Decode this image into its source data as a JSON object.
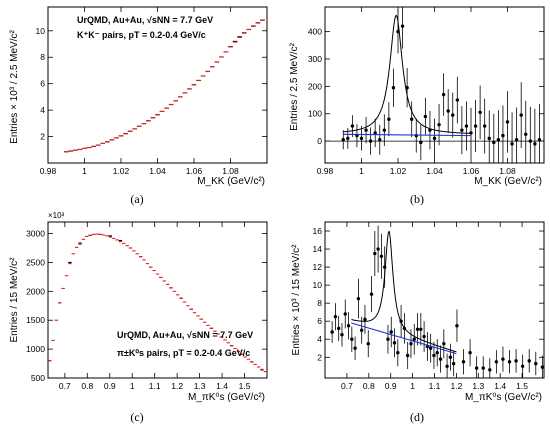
{
  "chart_data": [
    {
      "id": "a",
      "type": "histogram",
      "caption": "(a)",
      "xlabel": "M_KK (GeV/c²)",
      "ylabel": "Entries × 10³ / 2.5 MeV/c²",
      "xlim": [
        0.98,
        1.1
      ],
      "ylim": [
        0,
        11.8
      ],
      "xticks": [
        0.98,
        1.0,
        1.02,
        1.04,
        1.06,
        1.08
      ],
      "yticks": [
        2,
        4,
        6,
        8,
        10
      ],
      "annotations": [
        "UrQMD, Au+Au, √sNN = 7.7 GeV",
        "K⁺K⁻ pairs, pT = 0.2-0.4 GeV/c"
      ],
      "series": [
        {
          "style": "black-steps",
          "x": [
            0.99,
            0.9925,
            0.995,
            0.9975,
            1.0,
            1.0025,
            1.005,
            1.0075,
            1.01,
            1.0125,
            1.015,
            1.0175,
            1.02,
            1.0225,
            1.025,
            1.0275,
            1.03,
            1.0325,
            1.035,
            1.0375,
            1.04,
            1.0425,
            1.045,
            1.0475,
            1.05,
            1.0525,
            1.055,
            1.0575,
            1.06,
            1.0625,
            1.065,
            1.0675,
            1.07,
            1.0725,
            1.075,
            1.0775,
            1.08,
            1.0825,
            1.085,
            1.0875,
            1.09,
            1.0925,
            1.095,
            1.0975
          ],
          "y": [
            0.85,
            0.9,
            0.97,
            1.02,
            1.1,
            1.17,
            1.25,
            1.35,
            1.48,
            1.6,
            1.75,
            1.9,
            2.05,
            2.22,
            2.4,
            2.58,
            2.78,
            2.98,
            3.2,
            3.42,
            3.65,
            3.9,
            4.15,
            4.42,
            4.7,
            5.0,
            5.3,
            5.6,
            5.92,
            6.24,
            6.58,
            6.92,
            7.28,
            7.64,
            8.02,
            8.4,
            8.8,
            9.2,
            9.55,
            9.85,
            10.1,
            10.35,
            10.6,
            10.8
          ]
        },
        {
          "style": "red-steps",
          "x": [
            0.99,
            0.9925,
            0.995,
            0.9975,
            1.0,
            1.0025,
            1.005,
            1.0075,
            1.01,
            1.0125,
            1.015,
            1.0175,
            1.02,
            1.0225,
            1.025,
            1.0275,
            1.03,
            1.0325,
            1.035,
            1.0375,
            1.04,
            1.0425,
            1.045,
            1.0475,
            1.05,
            1.0525,
            1.055,
            1.0575,
            1.06,
            1.0625,
            1.065,
            1.0675,
            1.07,
            1.0725,
            1.075,
            1.0775,
            1.08,
            1.0825,
            1.085,
            1.0875,
            1.09,
            1.0925,
            1.095,
            1.0975
          ],
          "y": [
            0.85,
            0.92,
            0.98,
            1.03,
            1.1,
            1.17,
            1.26,
            1.36,
            1.48,
            1.62,
            1.76,
            1.9,
            2.06,
            2.22,
            2.4,
            2.58,
            2.78,
            2.98,
            3.2,
            3.43,
            3.66,
            3.9,
            4.16,
            4.43,
            4.7,
            5.0,
            5.3,
            5.61,
            5.92,
            6.25,
            6.58,
            6.93,
            7.28,
            7.65,
            8.02,
            8.4,
            8.78,
            9.15,
            9.5,
            9.82,
            10.1,
            10.38,
            10.62,
            10.82
          ]
        }
      ]
    },
    {
      "id": "b",
      "type": "scatter",
      "caption": "(b)",
      "xlabel": "M_KK (GeV/c²)",
      "ylabel": "Entries / 2.5 MeV/c²",
      "xlim": [
        0.98,
        1.1
      ],
      "ylim": [
        -80,
        490
      ],
      "xticks": [
        0.98,
        1.0,
        1.02,
        1.04,
        1.06,
        1.08
      ],
      "yticks": [
        0,
        100,
        200,
        300,
        400
      ],
      "series": [
        {
          "style": "points-with-errors",
          "x": [
            0.99,
            0.9925,
            0.995,
            0.9975,
            1.0,
            1.0025,
            1.005,
            1.0075,
            1.01,
            1.0125,
            1.015,
            1.0175,
            1.02,
            1.0225,
            1.025,
            1.0275,
            1.03,
            1.0325,
            1.035,
            1.0375,
            1.04,
            1.0425,
            1.045,
            1.0475,
            1.05,
            1.0525,
            1.055,
            1.0575,
            1.06,
            1.0625,
            1.065,
            1.0675,
            1.07,
            1.0725,
            1.075,
            1.0775,
            1.08,
            1.0825,
            1.085,
            1.0875,
            1.09,
            1.0925,
            1.095,
            1.0975
          ],
          "y": [
            5,
            10,
            55,
            20,
            10,
            40,
            0,
            30,
            5,
            40,
            80,
            195,
            400,
            420,
            195,
            80,
            20,
            -5,
            90,
            40,
            10,
            60,
            170,
            110,
            95,
            150,
            40,
            55,
            30,
            55,
            105,
            55,
            10,
            -5,
            5,
            20,
            70,
            -10,
            5,
            95,
            25,
            0,
            -10,
            5
          ],
          "err": [
            35,
            38,
            40,
            42,
            45,
            48,
            50,
            52,
            55,
            58,
            62,
            70,
            80,
            82,
            72,
            65,
            62,
            65,
            68,
            70,
            72,
            75,
            78,
            80,
            82,
            85,
            88,
            90,
            92,
            95,
            98,
            100,
            102,
            105,
            108,
            110,
            112,
            115,
            118,
            120,
            122,
            125,
            128,
            130
          ]
        },
        {
          "style": "black-curve",
          "name": "",
          "peak": {
            "mean": 1.019,
            "width": 0.0042,
            "amp": 435,
            "bg0": 25,
            "bg_slope": -20
          },
          "xrange": [
            0.99,
            1.06
          ]
        },
        {
          "style": "blue-line",
          "name": "",
          "x": [
            0.99,
            1.06
          ],
          "y": [
            25,
            20
          ]
        }
      ]
    },
    {
      "id": "c",
      "type": "histogram",
      "caption": "(c)",
      "xlabel": "M_πK⁰s (GeV/c²)",
      "ylabel": "Entries / 15 MeV/c²",
      "multiplier": "×10³",
      "xlim": [
        0.625,
        1.6
      ],
      "ylim": [
        500,
        3200
      ],
      "xticks": [
        0.7,
        0.8,
        0.9,
        1.0,
        1.1,
        1.2,
        1.3,
        1.4,
        1.5
      ],
      "yticks": [
        500,
        1000,
        1500,
        2000,
        2500,
        3000
      ],
      "annotations": [
        "UrQMD, Au+Au, √sNN = 7.7 GeV",
        "π±K⁰s pairs, pT = 0.2-0.4 GeV/c"
      ],
      "series": [
        {
          "style": "black-steps",
          "x": [
            0.6325,
            0.6775,
            0.7225,
            0.7675,
            0.8125,
            0.8575,
            0.9025,
            0.9475,
            0.9925,
            1.0375,
            1.0825,
            1.1275,
            1.1725,
            1.2175,
            1.2625,
            1.3075,
            1.3525,
            1.3975,
            1.4425,
            1.4875,
            1.5325,
            1.5775
          ],
          "y": [
            800,
            1800,
            2500,
            2820,
            2970,
            2985,
            2960,
            2880,
            2750,
            2600,
            2420,
            2240,
            2060,
            1880,
            1690,
            1520,
            1360,
            1210,
            1060,
            910,
            780,
            640
          ]
        },
        {
          "style": "red-steps",
          "x": [
            0.6325,
            0.6475,
            0.6625,
            0.6775,
            0.6925,
            0.7075,
            0.7225,
            0.7375,
            0.7525,
            0.7675,
            0.7825,
            0.7975,
            0.8125,
            0.8275,
            0.8425,
            0.8575,
            0.8725,
            0.8875,
            0.9025,
            0.9175,
            0.9325,
            0.9475,
            0.9625,
            0.9775,
            0.9925,
            1.0075,
            1.0225,
            1.0375,
            1.0525,
            1.0675,
            1.0825,
            1.0975,
            1.1125,
            1.1275,
            1.1425,
            1.1575,
            1.1725,
            1.1875,
            1.2025,
            1.2175,
            1.2325,
            1.2475,
            1.2625,
            1.2775,
            1.2925,
            1.3075,
            1.3225,
            1.3375,
            1.3525,
            1.3675,
            1.3825,
            1.3975,
            1.4125,
            1.4275,
            1.4425,
            1.4575,
            1.4725,
            1.4875,
            1.5025,
            1.5175,
            1.5325,
            1.5475,
            1.5625,
            1.5775,
            1.5925
          ],
          "y": [
            800,
            1150,
            1500,
            1800,
            2050,
            2270,
            2480,
            2650,
            2760,
            2840,
            2900,
            2950,
            2970,
            2985,
            2990,
            2985,
            2975,
            2960,
            2940,
            2915,
            2890,
            2860,
            2830,
            2790,
            2750,
            2700,
            2650,
            2600,
            2545,
            2480,
            2420,
            2360,
            2300,
            2240,
            2180,
            2120,
            2060,
            2000,
            1940,
            1880,
            1815,
            1750,
            1690,
            1630,
            1575,
            1520,
            1465,
            1410,
            1360,
            1310,
            1260,
            1210,
            1160,
            1110,
            1060,
            1010,
            960,
            910,
            865,
            825,
            780,
            735,
            690,
            650,
            610
          ]
        }
      ]
    },
    {
      "id": "d",
      "type": "scatter",
      "caption": "(d)",
      "xlabel": "M_πK⁰s (GeV/c²)",
      "ylabel": "Entries × 10³ / 15 MeV/c²",
      "xlim": [
        0.6,
        1.6
      ],
      "ylim": [
        -0.3,
        17
      ],
      "xticks": [
        0.7,
        0.8,
        0.9,
        1.0,
        1.1,
        1.2,
        1.3,
        1.4,
        1.5
      ],
      "yticks": [
        2,
        4,
        6,
        8,
        10,
        12,
        14,
        16
      ],
      "series": [
        {
          "style": "points-with-errors",
          "x": [
            0.6325,
            0.6475,
            0.6625,
            0.6775,
            0.6925,
            0.7075,
            0.7225,
            0.7375,
            0.7525,
            0.7675,
            0.7825,
            0.7975,
            0.8125,
            0.8275,
            0.8425,
            0.8575,
            0.8725,
            0.8875,
            0.9025,
            0.9175,
            0.9325,
            0.9475,
            0.9625,
            0.9775,
            0.9925,
            1.0075,
            1.0225,
            1.0375,
            1.0525,
            1.0675,
            1.0825,
            1.0975,
            1.1125,
            1.1275,
            1.1425,
            1.1575,
            1.1725,
            1.1875,
            1.2025,
            1.2325,
            1.2625,
            1.2925,
            1.3225,
            1.3525,
            1.3825,
            1.4125,
            1.4425,
            1.4725,
            1.5025,
            1.5325,
            1.5625,
            1.5925
          ],
          "y": [
            4.8,
            6.5,
            5.2,
            4.5,
            6.8,
            5.5,
            4.0,
            3.0,
            8.5,
            5.0,
            6.2,
            3.5,
            9.0,
            13.5,
            14.0,
            13.2,
            12.0,
            4.0,
            4.8,
            3.6,
            2.5,
            6.0,
            5.2,
            2.2,
            3.5,
            4.0,
            5.1,
            5.1,
            4.3,
            3.2,
            3.0,
            2.2,
            2.5,
            1.8,
            3.5,
            1.0,
            2.0,
            1.3,
            5.5,
            1.5,
            2.5,
            0.8,
            0.8,
            0.6,
            1.5,
            1.8,
            1.5,
            1.6,
            1.0,
            1.6,
            1.3,
            0.9
          ],
          "err": [
            1.2,
            1.5,
            1.4,
            1.3,
            1.6,
            1.5,
            1.4,
            1.3,
            2.2,
            1.5,
            1.6,
            1.5,
            2.0,
            2.5,
            2.6,
            2.5,
            2.3,
            1.6,
            1.7,
            1.6,
            1.5,
            1.8,
            1.7,
            1.5,
            1.6,
            1.7,
            1.8,
            1.8,
            1.7,
            1.6,
            1.6,
            1.5,
            1.5,
            1.5,
            1.6,
            1.4,
            1.5,
            1.4,
            1.8,
            1.4,
            1.5,
            1.3,
            1.3,
            1.3,
            1.3,
            1.4,
            1.3,
            1.3,
            1.3,
            1.3,
            1.3,
            1.3
          ]
        },
        {
          "style": "black-curve",
          "name": "",
          "peak": {
            "mean": 0.892,
            "width": 0.022,
            "amp": 11.2,
            "bg0": 6.0,
            "bg_slope": -7.2
          },
          "xrange": [
            0.72,
            1.2
          ]
        },
        {
          "style": "blue-line",
          "name": "",
          "x": [
            0.72,
            1.2
          ],
          "y": [
            5.8,
            2.4
          ]
        }
      ]
    }
  ]
}
